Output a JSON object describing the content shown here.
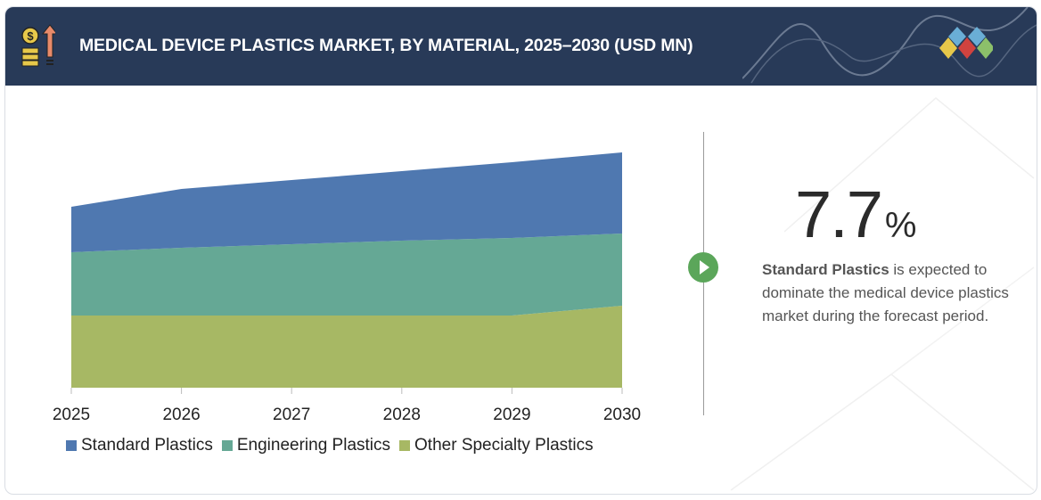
{
  "header": {
    "title": "MEDICAL DEVICE PLASTICS MARKET, BY MATERIAL, 2025–2030 (USD MN)",
    "icon": "money-growth-icon"
  },
  "highlight": {
    "value": "7.7",
    "unit": "%",
    "desc_bold": "Standard Plastics",
    "desc_rest": " is expected to dominate the medical device plastics market during the forecast period."
  },
  "colors": {
    "header": "#283a58",
    "standard": "#4f78b0",
    "engineering": "#65a895",
    "other": "#a7b864",
    "play": "#5ba65a"
  },
  "chart_data": {
    "type": "area",
    "stacked": true,
    "categories": [
      "2025",
      "2026",
      "2027",
      "2028",
      "2029",
      "2030"
    ],
    "series": [
      {
        "name": "Other Specialty Plastics",
        "values": [
          81,
          81,
          81,
          81,
          81,
          92
        ]
      },
      {
        "name": "Engineering Plastics",
        "values": [
          71,
          76,
          80,
          84,
          87,
          81
        ]
      },
      {
        "name": "Standard Plastics",
        "values": [
          51,
          66,
          72,
          78,
          85,
          91
        ]
      }
    ],
    "ylim": [
      0,
      265
    ],
    "yaxis_visible": false,
    "grid": false,
    "legend": {
      "placement": "bottom",
      "items": [
        "Standard Plastics",
        "Engineering Plastics",
        "Other Specialty Plastics"
      ]
    }
  }
}
